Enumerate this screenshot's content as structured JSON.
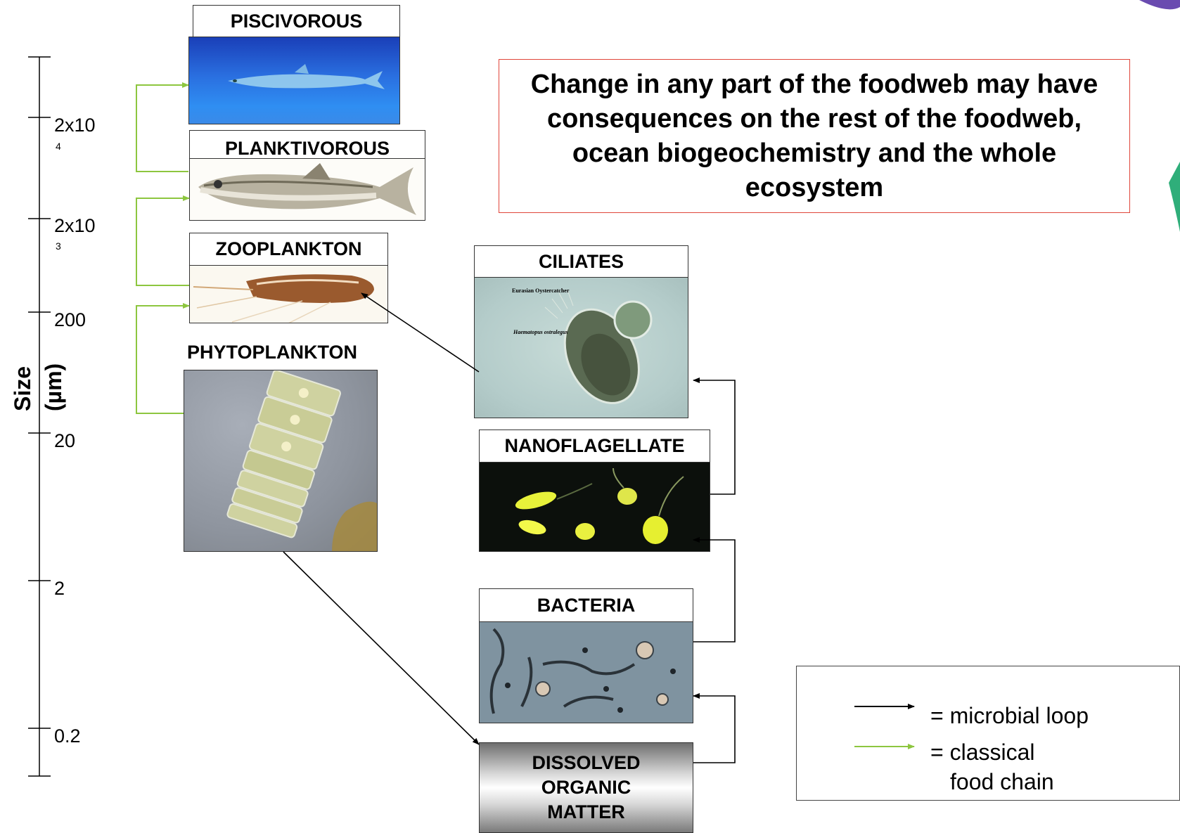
{
  "axis": {
    "title_size": "Size",
    "title_unit": "(µm)",
    "ticks": [
      {
        "main": "2x10",
        "sup": "4"
      },
      {
        "main": "2x10",
        "sup": "3"
      },
      {
        "main": "200",
        "sup": ""
      },
      {
        "main": "20",
        "sup": ""
      },
      {
        "main": "2",
        "sup": ""
      },
      {
        "main": "0.2",
        "sup": ""
      }
    ]
  },
  "classical": {
    "piscivorous": "PISCIVOROUS",
    "planktivorous": "PLANKTIVOROUS",
    "zooplankton": "ZOOPLANKTON",
    "phytoplankton": "PHYTOPLANKTON"
  },
  "microbial": {
    "ciliates": "CILIATES",
    "ciliates_photo_caption": "Eurasian Oystercatcher",
    "ciliates_photo_caption2": "Haematopus ostralegus",
    "nanoflagellate": "NANOFLAGELLATE",
    "bacteria": "BACTERIA",
    "dom_line1": "DISSOLVED",
    "dom_line2": "ORGANIC",
    "dom_line3": "MATTER"
  },
  "callout": {
    "text": "Change in any part of the foodweb may have consequences on the rest of the foodweb, ocean biogeochemistry and the whole ecosystem"
  },
  "legend": {
    "microbial_loop": "= microbial loop",
    "classical_line1": "= classical",
    "classical_line2": "food chain"
  },
  "colors": {
    "microbial_arrow": "#000000",
    "classical_arrow": "#8dc63f",
    "callout_border": "#e0453a"
  }
}
